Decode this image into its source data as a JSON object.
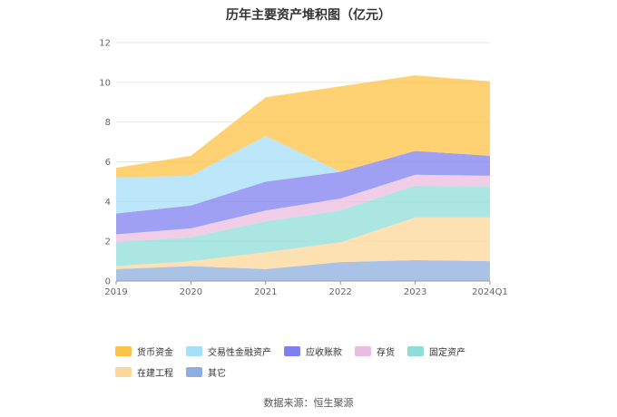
{
  "title": "历年主要资产堆积图（亿元）",
  "source": "数据来源：恒生聚源",
  "chart_data": {
    "type": "area",
    "stacked": true,
    "title": "历年主要资产堆积图（亿元）",
    "categories": [
      "2019",
      "2020",
      "2021",
      "2022",
      "2023",
      "2024Q1"
    ],
    "ylim": [
      0,
      12
    ],
    "yticks": [
      0,
      2,
      4,
      6,
      8,
      10,
      12
    ],
    "grid": true,
    "legend_position": "bottom",
    "series": [
      {
        "name": "其它",
        "color": "#8eaede",
        "values": [
          0.6,
          0.75,
          0.6,
          0.95,
          1.05,
          1.0
        ]
      },
      {
        "name": "在建工程",
        "color": "#fdd79a",
        "values": [
          0.15,
          0.25,
          0.85,
          1.0,
          2.15,
          2.2
        ]
      },
      {
        "name": "固定资产",
        "color": "#8fddd9",
        "values": [
          1.2,
          1.2,
          1.55,
          1.6,
          1.6,
          1.55
        ]
      },
      {
        "name": "存货",
        "color": "#ebbde0",
        "values": [
          0.4,
          0.45,
          0.55,
          0.6,
          0.55,
          0.55
        ]
      },
      {
        "name": "应收账款",
        "color": "#7f7ff0",
        "values": [
          1.05,
          1.15,
          1.45,
          1.35,
          1.2,
          1.0
        ]
      },
      {
        "name": "交易性金融资产",
        "color": "#a5dff8",
        "values": [
          1.8,
          1.5,
          2.3,
          0.0,
          0.0,
          0.0
        ]
      },
      {
        "name": "货币资金",
        "color": "#fdc344",
        "values": [
          0.5,
          1.0,
          1.95,
          4.3,
          3.8,
          3.75
        ]
      }
    ],
    "legend_order": [
      "货币资金",
      "交易性金融资产",
      "应收账款",
      "存货",
      "固定资产",
      "在建工程",
      "其它"
    ]
  }
}
